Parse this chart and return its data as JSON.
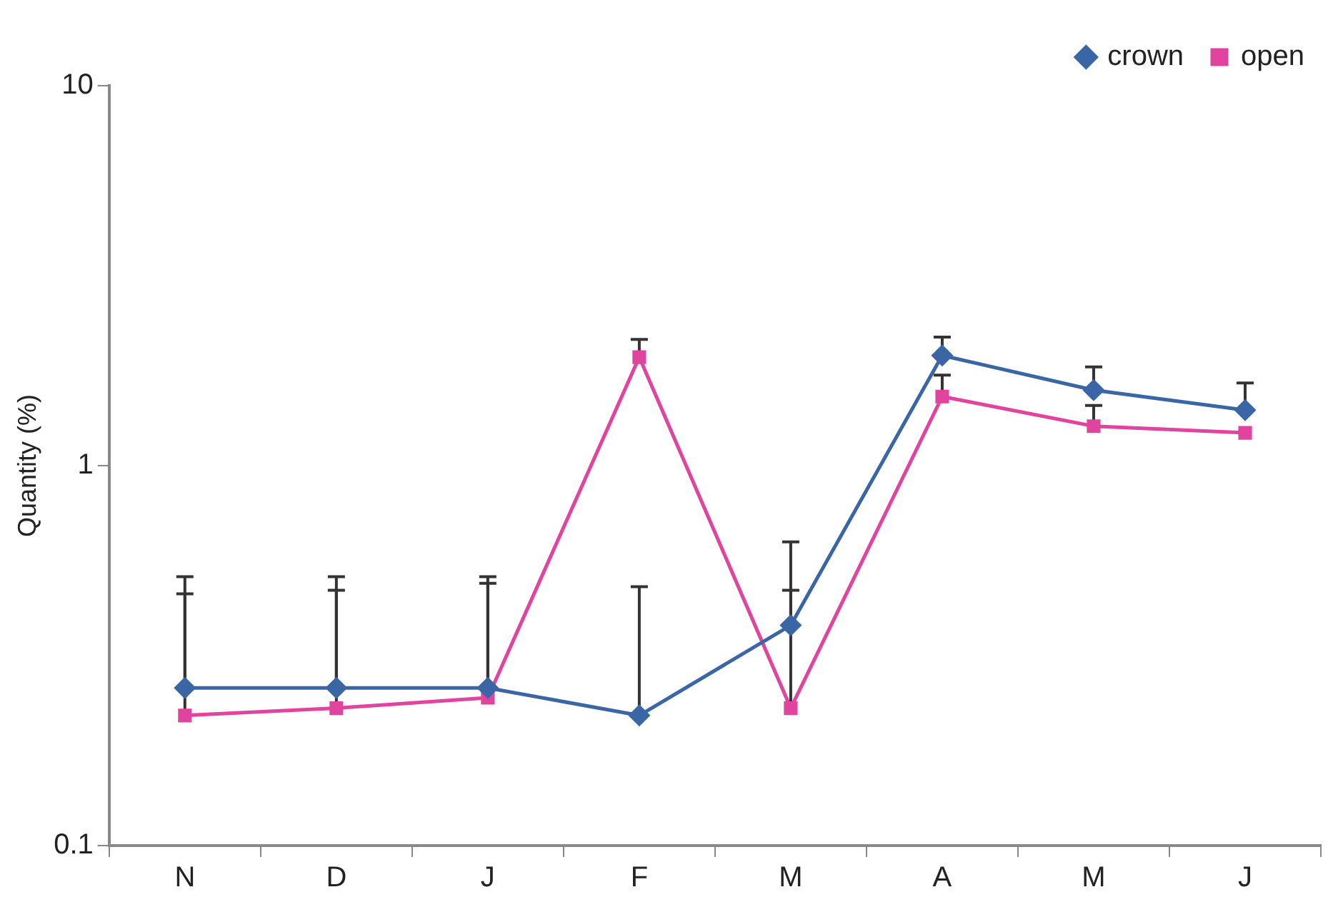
{
  "chart_data": {
    "type": "line",
    "ylabel": "Quantity (%)",
    "categories": [
      "N",
      "D",
      "J",
      "F",
      "M",
      "A",
      "M",
      "J"
    ],
    "series": [
      {
        "name": "crown",
        "color": "#3a66a6",
        "marker": "diamond",
        "values": [
          0.26,
          0.26,
          0.26,
          0.22,
          0.38,
          1.95,
          1.58,
          1.4
        ],
        "errors": [
          [
            0.26,
            0.51
          ],
          [
            0.26,
            0.51
          ],
          [
            0.26,
            0.51
          ],
          [
            0.22,
            0.48
          ],
          [
            0.38,
            0.63
          ],
          [
            1.95,
            2.18
          ],
          [
            1.58,
            1.82
          ],
          [
            1.4,
            1.65
          ]
        ]
      },
      {
        "name": "open",
        "color": "#e0449e",
        "marker": "square",
        "values": [
          0.22,
          0.23,
          0.245,
          1.93,
          0.23,
          1.52,
          1.27,
          1.22
        ],
        "errors": [
          [
            0.22,
            0.46
          ],
          [
            0.23,
            0.47
          ],
          [
            0.245,
            0.49
          ],
          [
            1.93,
            2.15
          ],
          [
            0.23,
            0.47
          ],
          [
            1.52,
            1.73
          ],
          [
            1.27,
            1.44
          ],
          null
        ]
      }
    ],
    "log": "y",
    "ylim": [
      0.1,
      10
    ],
    "yticks": [
      0.1,
      1,
      10
    ],
    "grid": false,
    "legend": "top right",
    "line_style": "solid"
  }
}
